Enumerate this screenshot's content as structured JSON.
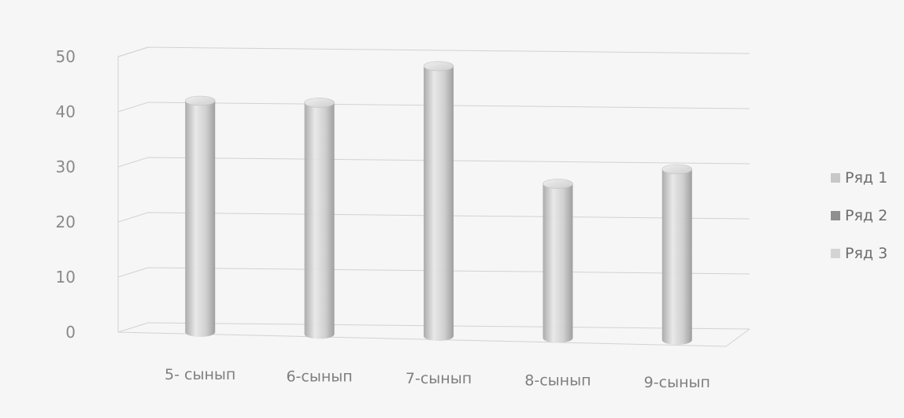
{
  "chart_data": {
    "type": "bar",
    "style": "3d-cylinder",
    "categories": [
      "5- сынып",
      "6-сынып",
      "7-сынып",
      "8-сынып",
      "9-сынып"
    ],
    "series": [
      {
        "name": "Ряд 1",
        "values": [
          42,
          42,
          49,
          28,
          31
        ]
      }
    ],
    "legend_entries": [
      "Ряд 1",
      "Ряд 2",
      "Ряд 3"
    ],
    "ylim": [
      0,
      50
    ],
    "yticks": [
      0,
      10,
      20,
      30,
      40,
      50
    ],
    "grid": true,
    "legend_position": "right",
    "colors": {
      "bar_light": "#e6e6e6",
      "bar_mid": "#c2c2c2",
      "bar_dark": "#9c9c9c",
      "grid": "#d2d2d2",
      "legend_ryad1": "#c8c8c8",
      "legend_ryad2": "#8f8f8f",
      "legend_ryad3": "#d4d4d4"
    }
  }
}
